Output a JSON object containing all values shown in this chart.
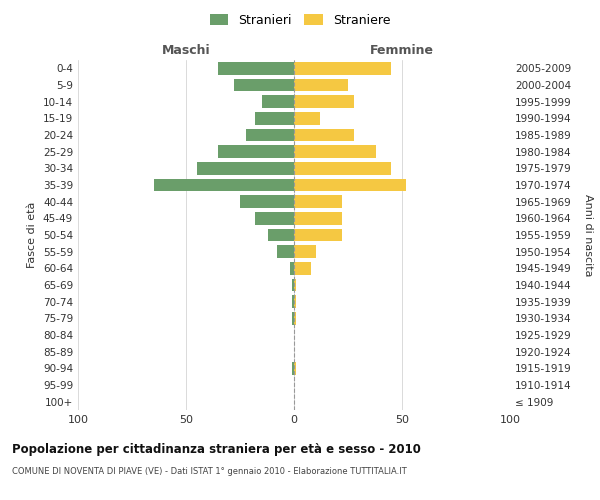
{
  "age_groups": [
    "100+",
    "95-99",
    "90-94",
    "85-89",
    "80-84",
    "75-79",
    "70-74",
    "65-69",
    "60-64",
    "55-59",
    "50-54",
    "45-49",
    "40-44",
    "35-39",
    "30-34",
    "25-29",
    "20-24",
    "15-19",
    "10-14",
    "5-9",
    "0-4"
  ],
  "birth_years": [
    "≤ 1909",
    "1910-1914",
    "1915-1919",
    "1920-1924",
    "1925-1929",
    "1930-1934",
    "1935-1939",
    "1940-1944",
    "1945-1949",
    "1950-1954",
    "1955-1959",
    "1960-1964",
    "1965-1969",
    "1970-1974",
    "1975-1979",
    "1980-1984",
    "1985-1989",
    "1990-1994",
    "1995-1999",
    "2000-2004",
    "2005-2009"
  ],
  "maschi": [
    0,
    0,
    1,
    0,
    0,
    1,
    1,
    1,
    2,
    8,
    12,
    18,
    25,
    65,
    45,
    35,
    22,
    18,
    15,
    28,
    35
  ],
  "femmine": [
    0,
    0,
    1,
    0,
    0,
    1,
    1,
    1,
    8,
    10,
    22,
    22,
    22,
    52,
    45,
    38,
    28,
    12,
    28,
    25,
    45
  ],
  "color_maschi": "#6a9e6a",
  "color_femmine": "#f5c842",
  "title": "Popolazione per cittadinanza straniera per età e sesso - 2010",
  "subtitle": "COMUNE DI NOVENTA DI PIAVE (VE) - Dati ISTAT 1° gennaio 2010 - Elaborazione TUTTITALIA.IT",
  "ylabel_left": "Fasce di età",
  "ylabel_right": "Anni di nascita",
  "xlabel_left": "Maschi",
  "xlabel_right": "Femmine",
  "xlim": 100,
  "background_color": "#ffffff",
  "grid_color": "#cccccc",
  "legend_stranieri": "Stranieri",
  "legend_straniere": "Straniere"
}
